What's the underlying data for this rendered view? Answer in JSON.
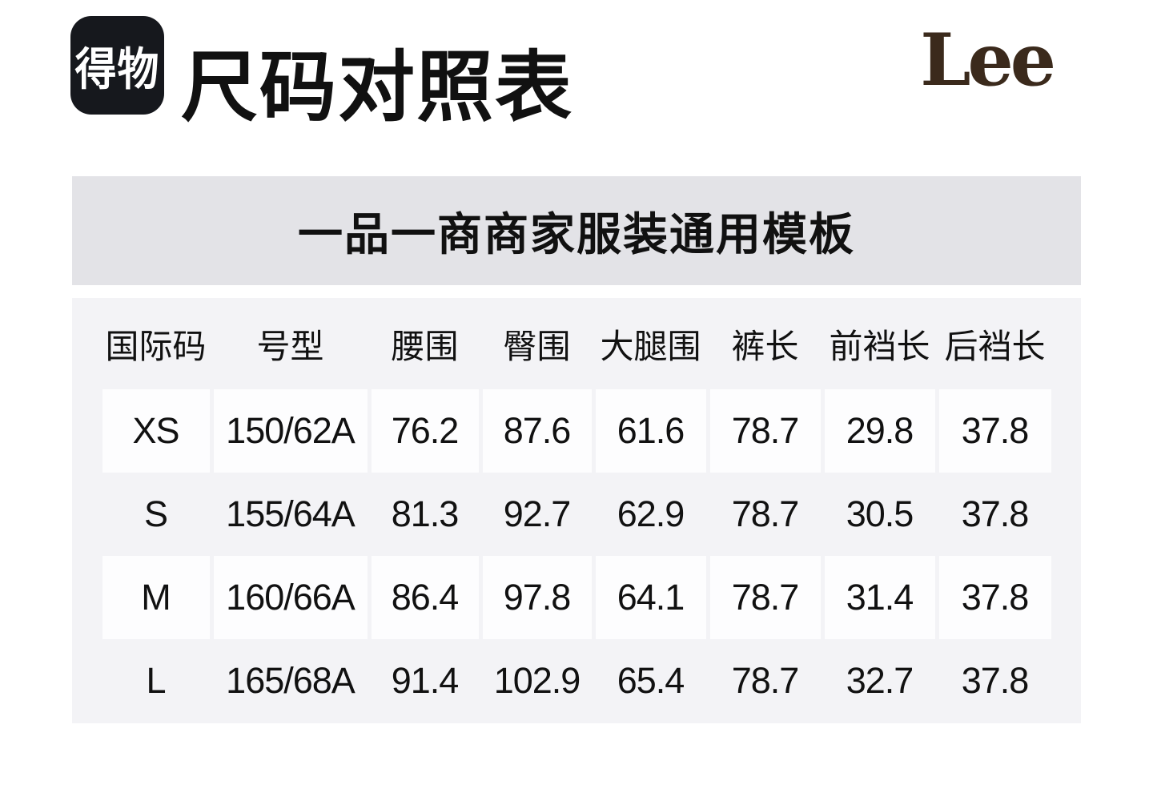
{
  "header": {
    "app_logo_text": "得物",
    "page_title": "尺码对照表",
    "brand_logo_text": "Lee"
  },
  "banner": {
    "title": "一品一商商家服装通用模板"
  },
  "size_table": {
    "columns": [
      "国际码",
      "号型",
      "腰围",
      "臀围",
      "大腿围",
      "裤长",
      "前裆长",
      "后裆长"
    ],
    "rows": [
      [
        "XS",
        "150/62A",
        "76.2",
        "87.6",
        "61.6",
        "78.7",
        "29.8",
        "37.8"
      ],
      [
        "S",
        "155/64A",
        "81.3",
        "92.7",
        "62.9",
        "78.7",
        "30.5",
        "37.8"
      ],
      [
        "M",
        "160/66A",
        "86.4",
        "97.8",
        "64.1",
        "78.7",
        "31.4",
        "37.8"
      ],
      [
        "L",
        "165/68A",
        "91.4",
        "102.9",
        "65.4",
        "78.7",
        "32.7",
        "37.8"
      ]
    ]
  },
  "colors": {
    "banner_bg": "#e3e3e7",
    "table_bg": "#f3f3f6",
    "cell_bg": "#fdfdfe",
    "text": "#111111",
    "app_logo_bg": "#16181d",
    "brand_logo_color": "#3b2a1c"
  }
}
